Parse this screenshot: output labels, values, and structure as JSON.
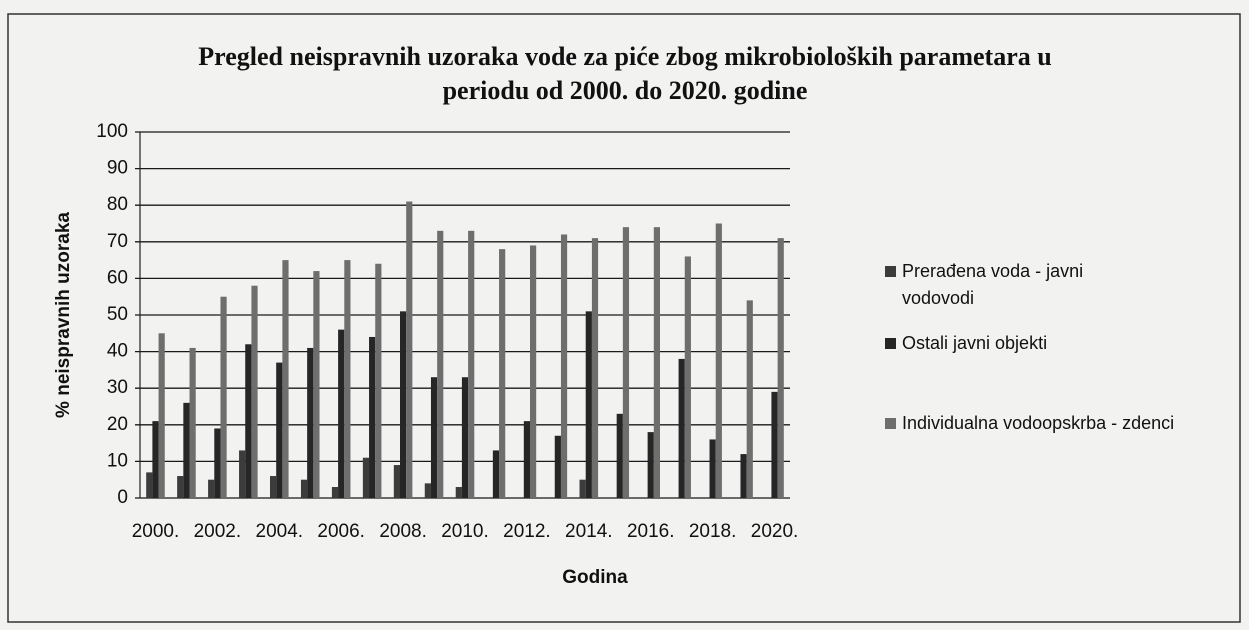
{
  "chart_data": {
    "type": "bar",
    "title": "Pregled neispravnih uzoraka vode za piće zbog mikrobioloških parametara u periodu od 2000. do 2020. godine",
    "x_label": "Godina",
    "y_label": "% neispravnih uzoraka",
    "categories": [
      "2000.",
      null,
      "2002.",
      null,
      "2004.",
      null,
      "2006.",
      null,
      "2008.",
      null,
      "2010.",
      null,
      "2012.",
      null,
      "2014.",
      null,
      "2016.",
      null,
      "2018.",
      null,
      "2020."
    ],
    "series": [
      {
        "name": "Prerađena voda - javni vodovodi",
        "color": "#3c3c3c",
        "values": [
          7,
          6,
          5,
          13,
          6,
          5,
          3,
          11,
          9,
          4,
          3,
          0,
          0,
          0,
          5,
          0,
          0,
          0,
          0,
          0,
          0
        ]
      },
      {
        "name": "Ostali javni objekti",
        "color": "#262626",
        "values": [
          21,
          26,
          19,
          42,
          37,
          41,
          46,
          44,
          51,
          33,
          33,
          13,
          21,
          17,
          51,
          23,
          18,
          38,
          16,
          12,
          29
        ]
      },
      {
        "name": "Individualna vodoopskrba - zdenci",
        "color": "#6e6e6e",
        "values": [
          45,
          41,
          55,
          58,
          65,
          62,
          65,
          64,
          81,
          73,
          73,
          68,
          69,
          72,
          71,
          74,
          74,
          66,
          75,
          54,
          71
        ]
      }
    ],
    "ylim": [
      0,
      100
    ],
    "yticks": [
      0,
      10,
      20,
      30,
      40,
      50,
      60,
      70,
      80,
      90,
      100
    ],
    "grid": true,
    "legend": "right"
  }
}
